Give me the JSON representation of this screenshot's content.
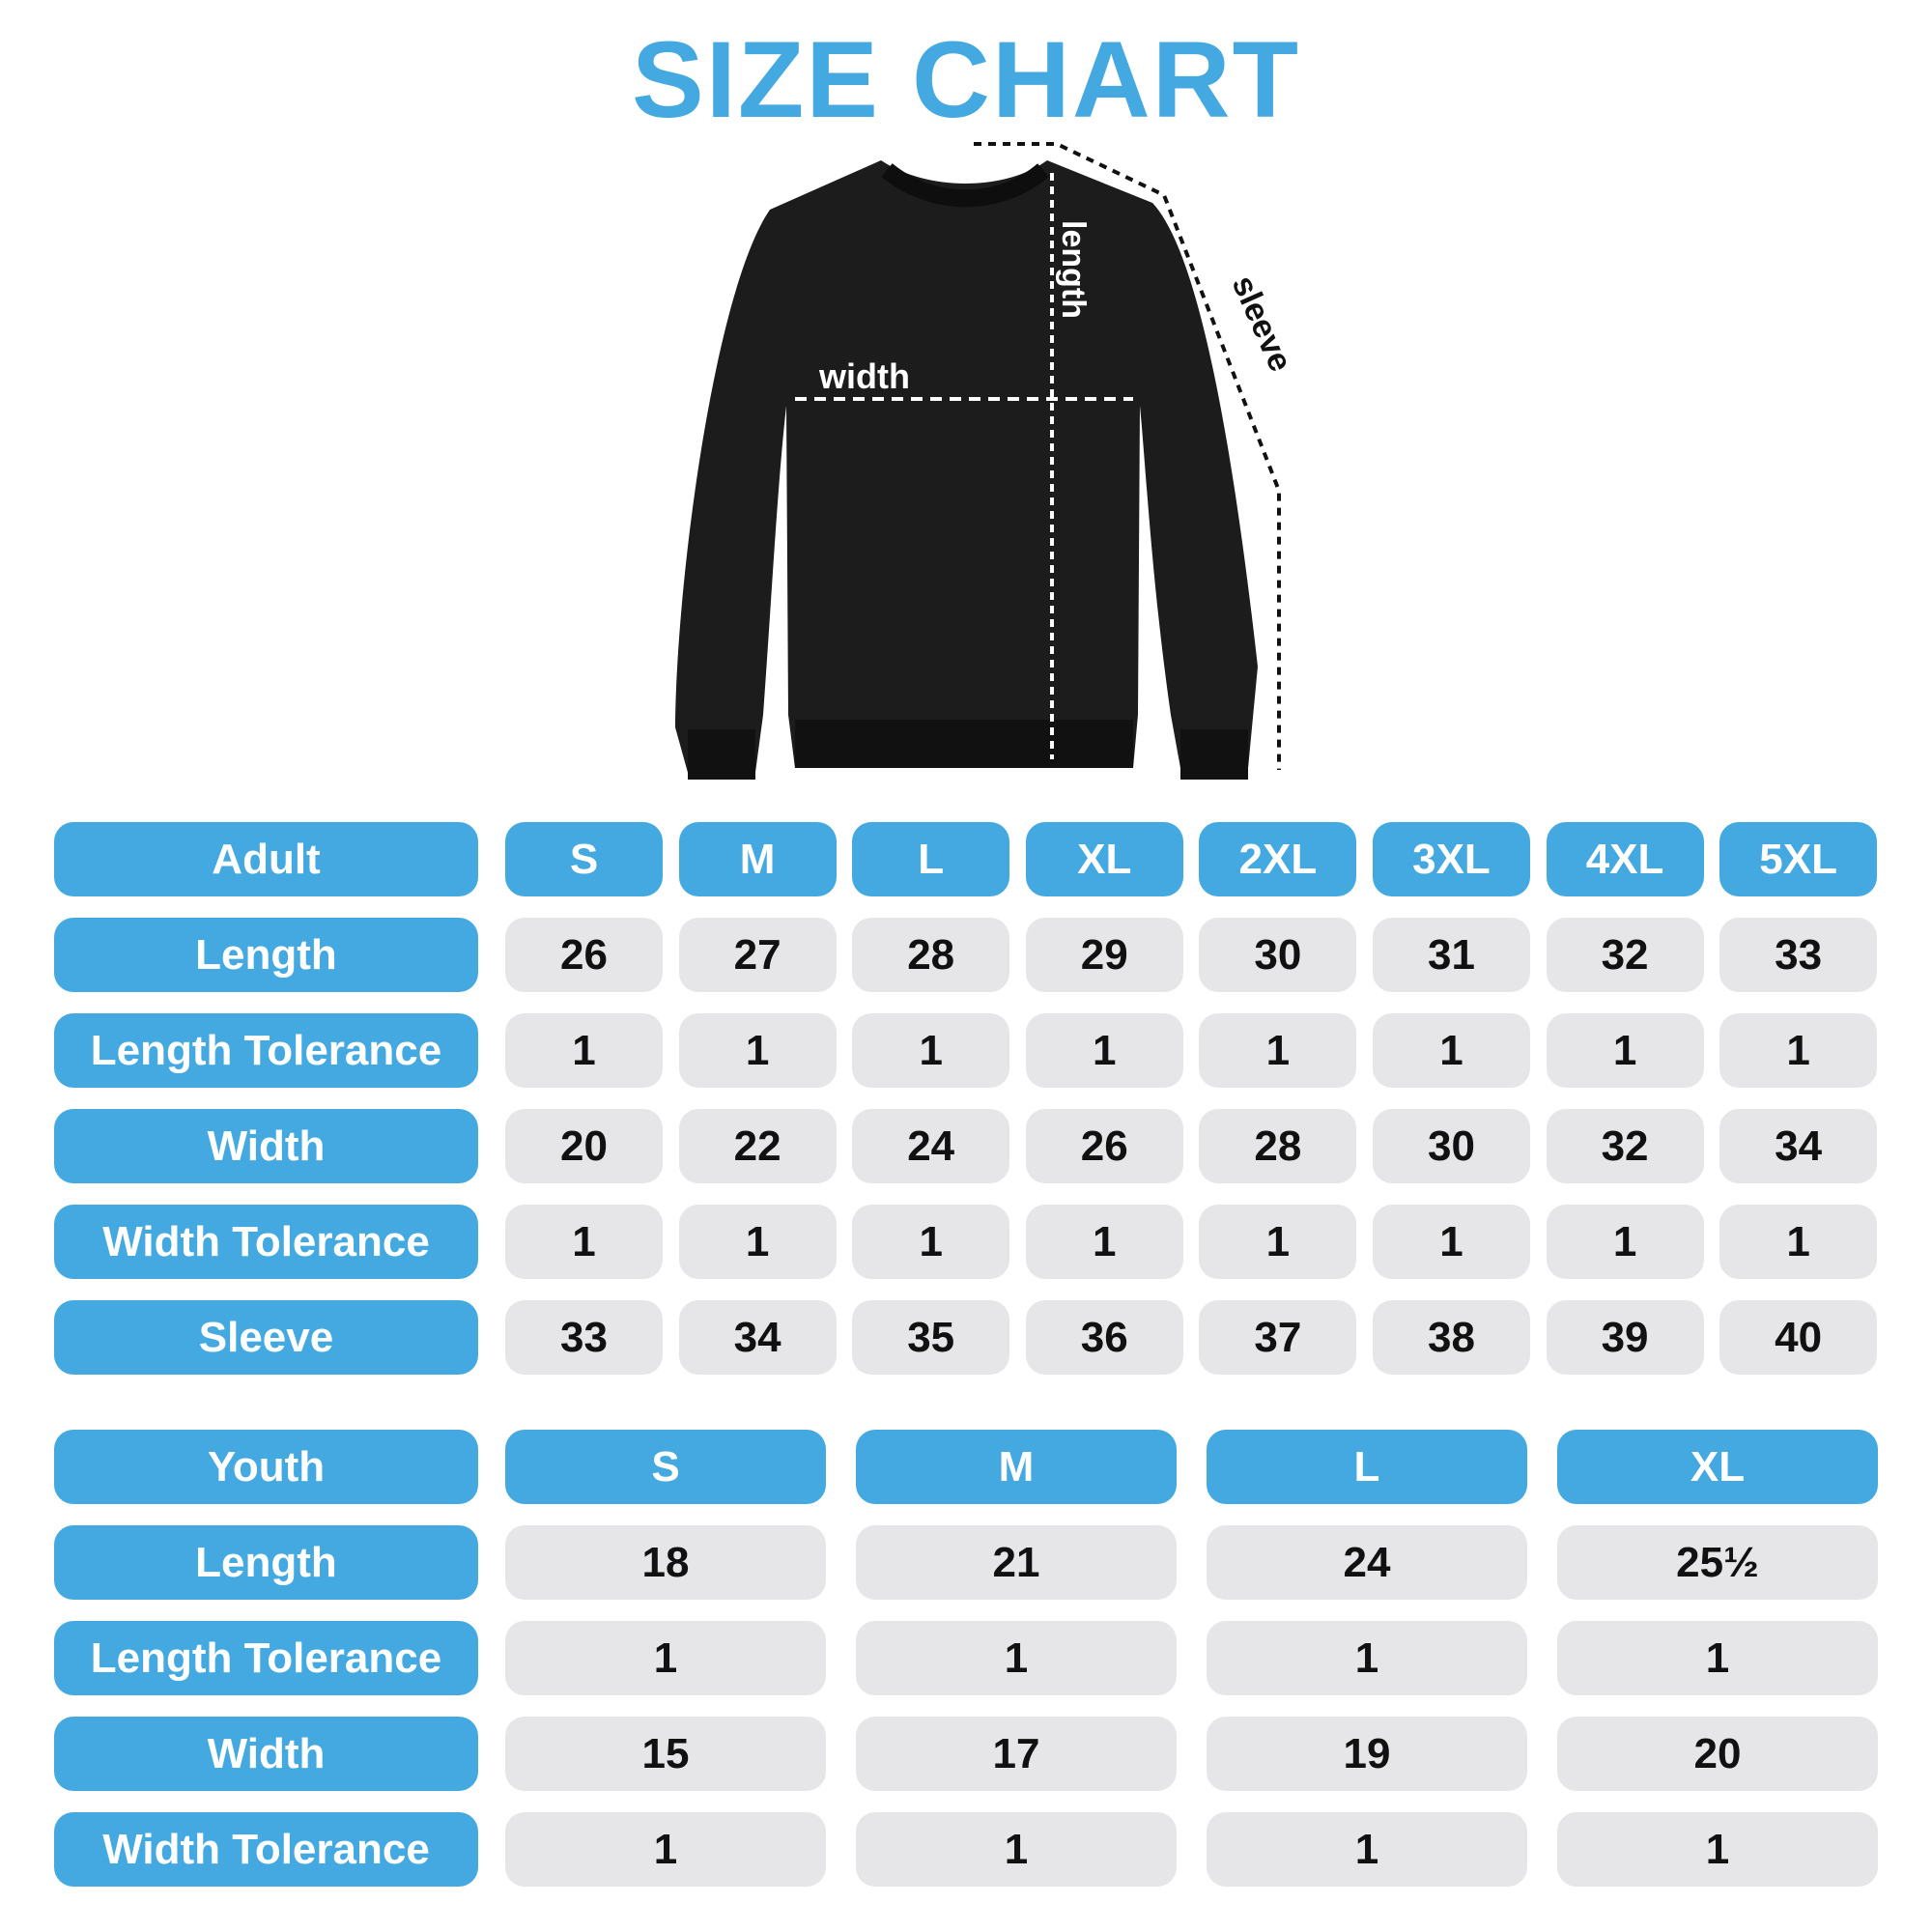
{
  "title": "SIZE CHART",
  "colors": {
    "accent": "#44a9e0",
    "cell": "#e6e6e8",
    "garment": "#1c1c1c"
  },
  "diagram": {
    "width_label": "width",
    "length_label": "length",
    "sleeve_label": "sleeve"
  },
  "adult": {
    "header": "Adult",
    "sizes": [
      "S",
      "M",
      "L",
      "XL",
      "2XL",
      "3XL",
      "4XL",
      "5XL"
    ],
    "rows": [
      {
        "label": "Length",
        "values": [
          "26",
          "27",
          "28",
          "29",
          "30",
          "31",
          "32",
          "33"
        ]
      },
      {
        "label": "Length Tolerance",
        "values": [
          "1",
          "1",
          "1",
          "1",
          "1",
          "1",
          "1",
          "1"
        ]
      },
      {
        "label": "Width",
        "values": [
          "20",
          "22",
          "24",
          "26",
          "28",
          "30",
          "32",
          "34"
        ]
      },
      {
        "label": "Width Tolerance",
        "values": [
          "1",
          "1",
          "1",
          "1",
          "1",
          "1",
          "1",
          "1"
        ]
      },
      {
        "label": "Sleeve",
        "values": [
          "33",
          "34",
          "35",
          "36",
          "37",
          "38",
          "39",
          "40"
        ]
      }
    ]
  },
  "youth": {
    "header": "Youth",
    "sizes": [
      "S",
      "M",
      "L",
      "XL"
    ],
    "rows": [
      {
        "label": "Length",
        "values": [
          "18",
          "21",
          "24",
          "25½"
        ]
      },
      {
        "label": "Length Tolerance",
        "values": [
          "1",
          "1",
          "1",
          "1"
        ]
      },
      {
        "label": "Width",
        "values": [
          "15",
          "17",
          "19",
          "20"
        ]
      },
      {
        "label": "Width Tolerance",
        "values": [
          "1",
          "1",
          "1",
          "1"
        ]
      }
    ]
  }
}
